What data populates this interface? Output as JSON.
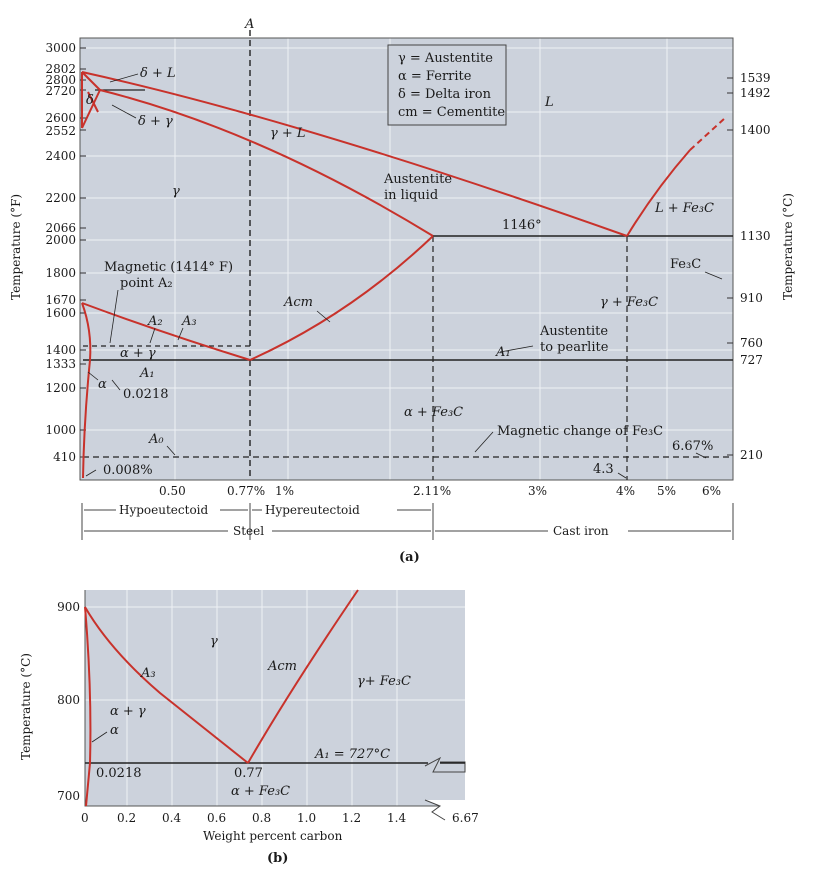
{
  "figure_a": {
    "top_label": "A",
    "left_axis_title": "Temperature (°F)",
    "right_axis_title": "Temperature (°C)",
    "left_ticks": [
      "3000",
      "2802",
      "2800",
      "2720",
      "2600",
      "2552",
      "2400",
      "2200",
      "2066",
      "2000",
      "1800",
      "1670",
      "1600",
      "1400",
      "1333",
      "1200",
      "1000",
      "410"
    ],
    "right_ticks": [
      "1539",
      "1492",
      "1400",
      "1130",
      "910",
      "760",
      "727",
      "210"
    ],
    "x_ticks": [
      "0.50",
      "0.77%",
      "1%",
      "2.11%",
      "3%",
      "4%",
      "5%",
      "6%"
    ],
    "legend": [
      "γ = Austentite",
      "α = Ferrite",
      "δ = Delta iron",
      "cm = Cementite"
    ],
    "labels": {
      "delta_L": "δ + L",
      "delta": "δ",
      "delta_gamma": "δ + γ",
      "L": "L",
      "gamma_L": "γ + L",
      "gamma": "γ",
      "austenite_liquid_1": "Austentite",
      "austenite_liquid_2": "in liquid",
      "eutectic_temp": "1146°",
      "L_Fe3C": "L + Fe₃C",
      "Fe3C": "Fe₃C",
      "magnetic_1": "Magnetic (1414° F)",
      "magnetic_2": "point A₂",
      "Acm": "Acm",
      "gamma_Fe3C": "γ + Fe₃C",
      "A2": "A₂",
      "A3": "A₃",
      "alpha_gamma": "α + γ",
      "austenite_pearlite_1": "Austentite",
      "austenite_pearlite_2": "to pearlite",
      "A1_right": "A₁",
      "A1_left": "A₁",
      "alpha": "α",
      "c0218": "0.0218",
      "alpha_Fe3C": "α + Fe₃C",
      "A0": "A₀",
      "magnetic_change": "Magnetic change of Fe₃C",
      "c667": "6.67%",
      "c0008": "0.008%",
      "c43": "4.3"
    },
    "bottom": {
      "hypo": "Hypoeutectoid",
      "hyper": "Hypereutectoid",
      "steel": "Steel",
      "cast_iron": "Cast iron"
    },
    "caption": "(a)"
  },
  "figure_b": {
    "y_ticks": [
      "900",
      "800",
      "700"
    ],
    "x_ticks": [
      "0",
      "0.2",
      "0.4",
      "0.6",
      "0.8",
      "1.0",
      "1.2",
      "1.4",
      "6.67"
    ],
    "y_axis_title": "Temperature (°C)",
    "x_axis_title": "Weight percent carbon",
    "labels": {
      "gamma": "γ",
      "A3": "A₃",
      "Acm": "Acm",
      "gamma_Fe3C": "γ+ Fe₃C",
      "alpha_gamma": "α + γ",
      "alpha": "α",
      "A1": "A₁ = 727°C",
      "c0218": "0.0218",
      "c077": "0.77",
      "alpha_Fe3C": "α + Fe₃C"
    },
    "caption": "(b)"
  },
  "colors": {
    "phase_line": "#c8322b",
    "plot_bg": "#ccd2dc",
    "grid": "#eef1f5"
  }
}
